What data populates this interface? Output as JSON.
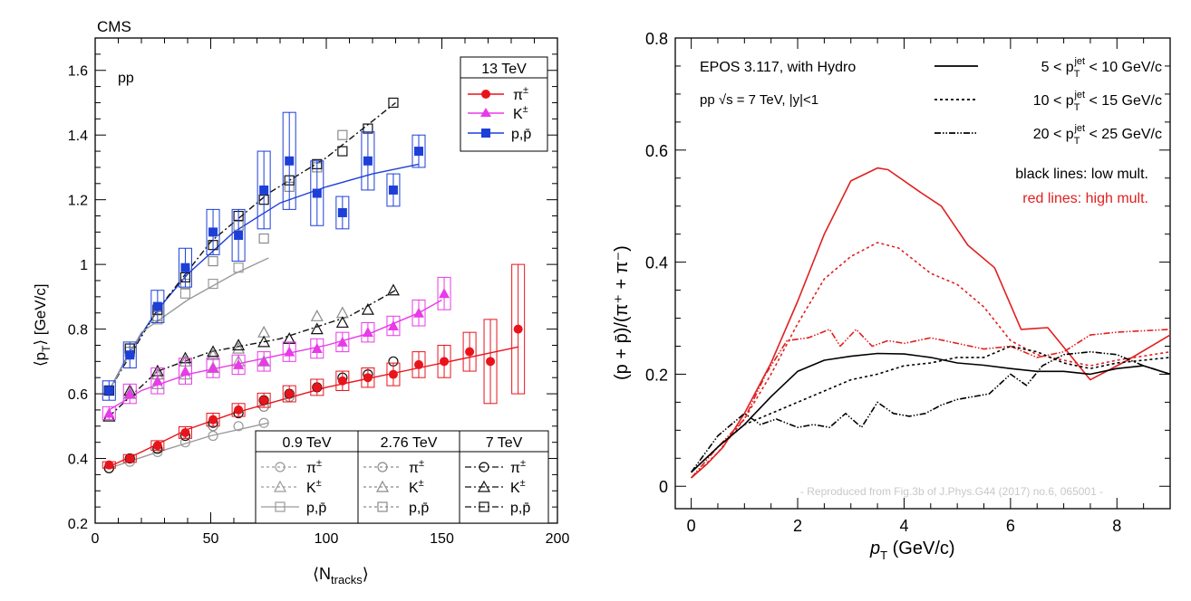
{
  "chart_data": [
    {
      "type": "scatter",
      "experiment_label": "CMS",
      "system_label": "pp",
      "xlabel": "⟨N",
      "xlabel_sub": "tracks",
      "xlabel_end": "⟩",
      "ylabel": "⟨p",
      "ylabel_sub": "T",
      "ylabel_end": "⟩ [GeV/c]",
      "xlim": [
        0,
        200
      ],
      "ylim": [
        0.2,
        1.7
      ],
      "xticks": [
        0,
        50,
        100,
        150,
        200
      ],
      "yticks": [
        0.2,
        0.4,
        0.6,
        0.8,
        1,
        1.2,
        1.4,
        1.6
      ],
      "legend_13": {
        "title": "13 TeV",
        "entries": [
          {
            "main": "π",
            "sup": "±"
          },
          {
            "main": "K",
            "sup": "±"
          },
          {
            "main": "p,p̄",
            "sup": ""
          }
        ]
      },
      "legend_bottom": [
        {
          "title": "0.9 TeV",
          "entries": [
            {
              "main": "π",
              "sup": "±"
            },
            {
              "main": "K",
              "sup": "±"
            },
            {
              "main": "p,p̄",
              "sup": ""
            }
          ]
        },
        {
          "title": "2.76 TeV",
          "entries": [
            {
              "main": "π",
              "sup": "±"
            },
            {
              "main": "K",
              "sup": "±"
            },
            {
              "main": "p,p̄",
              "sup": ""
            }
          ]
        },
        {
          "title": "7 TeV",
          "entries": [
            {
              "main": "π",
              "sup": "±"
            },
            {
              "main": "K",
              "sup": "±"
            },
            {
              "main": "p,p̄",
              "sup": ""
            }
          ]
        }
      ],
      "colors": {
        "pion13": "#e8141c",
        "kaon13": "#e83ae8",
        "proton13": "#1d3fd8",
        "tev09": "#9a9a9a",
        "tev276": "#8a8a8a",
        "tev7": "#111111"
      },
      "series": [
        {
          "name": "π± 13 TeV",
          "marker": "filled-circle",
          "color": "#e8141c",
          "x": [
            6,
            15,
            27,
            39,
            51,
            62,
            73,
            84,
            96,
            107,
            118,
            129,
            140,
            151,
            162,
            171,
            183
          ],
          "y": [
            0.38,
            0.4,
            0.44,
            0.48,
            0.52,
            0.55,
            0.58,
            0.6,
            0.62,
            0.64,
            0.65,
            0.66,
            0.69,
            0.7,
            0.73,
            0.7,
            0.8
          ],
          "sys": [
            0.01,
            0.012,
            0.015,
            0.018,
            0.02,
            0.02,
            0.022,
            0.025,
            0.025,
            0.03,
            0.03,
            0.035,
            0.04,
            0.05,
            0.06,
            0.13,
            0.2
          ]
        },
        {
          "name": "K± 13 TeV",
          "marker": "filled-triangle",
          "color": "#e83ae8",
          "x": [
            6,
            15,
            27,
            39,
            51,
            62,
            73,
            84,
            96,
            107,
            118,
            129,
            140,
            151
          ],
          "y": [
            0.54,
            0.6,
            0.64,
            0.67,
            0.68,
            0.69,
            0.7,
            0.73,
            0.74,
            0.76,
            0.79,
            0.81,
            0.85,
            0.91
          ],
          "sys": [
            0.02,
            0.03,
            0.04,
            0.04,
            0.03,
            0.03,
            0.03,
            0.03,
            0.03,
            0.03,
            0.03,
            0.03,
            0.04,
            0.05
          ]
        },
        {
          "name": "p,p̄ 13 TeV",
          "marker": "filled-square",
          "color": "#1d3fd8",
          "x": [
            6,
            15,
            27,
            39,
            51,
            62,
            73,
            84,
            96,
            107,
            118,
            129,
            140
          ],
          "y": [
            0.61,
            0.72,
            0.87,
            0.99,
            1.1,
            1.09,
            1.23,
            1.32,
            1.22,
            1.16,
            1.32,
            1.23,
            1.35
          ],
          "sys": [
            0.03,
            0.04,
            0.05,
            0.06,
            0.07,
            0.08,
            0.12,
            0.15,
            0.1,
            0.05,
            0.09,
            0.05,
            0.05
          ]
        },
        {
          "name": "π± 0.9 TeV",
          "marker": "open-circle",
          "color": "#9a9a9a",
          "x": [
            6,
            15,
            27,
            39,
            51,
            62,
            73
          ],
          "y": [
            0.37,
            0.39,
            0.42,
            0.45,
            0.47,
            0.5,
            0.51
          ]
        },
        {
          "name": "K± 0.9 TeV",
          "marker": "open-triangle",
          "color": "#9a9a9a",
          "x": [
            6,
            15,
            27,
            39,
            51,
            62,
            73
          ],
          "y": [
            0.53,
            0.6,
            0.63,
            0.66,
            0.68,
            0.7,
            0.7
          ]
        },
        {
          "name": "p,p̄ 0.9 TeV",
          "marker": "open-square",
          "color": "#9a9a9a",
          "x": [
            6,
            15,
            27,
            39,
            51,
            62
          ],
          "y": [
            0.61,
            0.73,
            0.83,
            0.91,
            0.94,
            0.99
          ]
        },
        {
          "name": "π± 2.76 TeV",
          "marker": "open-circle",
          "color": "#8a8a8a",
          "x": [
            6,
            15,
            27,
            39,
            51,
            62,
            73,
            84
          ],
          "y": [
            0.37,
            0.4,
            0.43,
            0.47,
            0.5,
            0.54,
            0.56,
            0.59
          ]
        },
        {
          "name": "K± 2.76 TeV",
          "marker": "open-triangle",
          "color": "#8a8a8a",
          "x": [
            6,
            15,
            27,
            39,
            51,
            62,
            73,
            84,
            96,
            107
          ],
          "y": [
            0.53,
            0.6,
            0.66,
            0.7,
            0.72,
            0.74,
            0.79,
            0.77,
            0.84,
            0.85
          ]
        },
        {
          "name": "p,p̄ 2.76 TeV",
          "marker": "open-square",
          "color": "#8a8a8a",
          "x": [
            6,
            15,
            27,
            39,
            51,
            62,
            73,
            84,
            96,
            107
          ],
          "y": [
            0.61,
            0.73,
            0.84,
            0.94,
            1.01,
            1.12,
            1.08,
            1.24,
            1.3,
            1.4
          ]
        },
        {
          "name": "π± 7 TeV",
          "marker": "open-circle",
          "color": "#111111",
          "x": [
            6,
            15,
            27,
            39,
            51,
            62,
            73,
            84,
            96,
            107,
            118,
            129
          ],
          "y": [
            0.37,
            0.4,
            0.43,
            0.47,
            0.51,
            0.54,
            0.58,
            0.6,
            0.62,
            0.65,
            0.66,
            0.7
          ]
        },
        {
          "name": "K± 7 TeV",
          "marker": "open-triangle",
          "color": "#111111",
          "x": [
            6,
            15,
            27,
            39,
            51,
            62,
            73,
            84,
            96,
            107,
            118,
            129
          ],
          "y": [
            0.53,
            0.61,
            0.67,
            0.71,
            0.73,
            0.75,
            0.76,
            0.77,
            0.8,
            0.82,
            0.86,
            0.92
          ]
        },
        {
          "name": "p,p̄ 7 TeV",
          "marker": "open-square",
          "color": "#111111",
          "x": [
            6,
            15,
            27,
            39,
            51,
            62,
            73,
            84,
            96,
            107,
            118,
            129
          ],
          "y": [
            0.61,
            0.74,
            0.86,
            0.96,
            1.06,
            1.15,
            1.2,
            1.26,
            1.31,
            1.35,
            1.42,
            1.5
          ]
        }
      ],
      "fits": [
        {
          "name": "pion13 fit",
          "color": "#e8141c",
          "dash": "",
          "x": [
            6,
            20,
            40,
            60,
            80,
            100,
            120,
            140,
            160,
            183
          ],
          "y": [
            0.375,
            0.42,
            0.49,
            0.54,
            0.58,
            0.62,
            0.65,
            0.68,
            0.71,
            0.745
          ]
        },
        {
          "name": "kaon13 fit",
          "color": "#e83ae8",
          "dash": "",
          "x": [
            6,
            20,
            40,
            60,
            80,
            100,
            120,
            140,
            150
          ],
          "y": [
            0.55,
            0.61,
            0.66,
            0.69,
            0.72,
            0.75,
            0.79,
            0.85,
            0.89
          ]
        },
        {
          "name": "proton13 fit",
          "color": "#1d3fd8",
          "dash": "",
          "x": [
            6,
            15,
            27,
            40,
            60,
            80,
            100,
            120,
            140
          ],
          "y": [
            0.61,
            0.73,
            0.86,
            0.97,
            1.1,
            1.19,
            1.24,
            1.28,
            1.31
          ]
        },
        {
          "name": "proton 7 fit",
          "color": "#111111",
          "dash": "7,3,2,3",
          "x": [
            6,
            27,
            50,
            75,
            100,
            130
          ],
          "y": [
            0.61,
            0.86,
            1.07,
            1.22,
            1.33,
            1.5
          ]
        },
        {
          "name": "proton 0.9 fit",
          "color": "#9a9a9a",
          "dash": "",
          "x": [
            6,
            20,
            40,
            60,
            75
          ],
          "y": [
            0.61,
            0.79,
            0.89,
            0.97,
            1.02
          ]
        },
        {
          "name": "kaon 7 fit",
          "color": "#111111",
          "dash": "7,3,2,3",
          "x": [
            6,
            27,
            50,
            80,
            110,
            130
          ],
          "y": [
            0.53,
            0.67,
            0.73,
            0.77,
            0.84,
            0.92
          ]
        },
        {
          "name": "pion 0.9 fit",
          "color": "#9a9a9a",
          "dash": "",
          "x": [
            6,
            27,
            50,
            75
          ],
          "y": [
            0.37,
            0.42,
            0.47,
            0.51
          ]
        }
      ]
    },
    {
      "type": "line",
      "xlabel": "p",
      "xlabel_sub": "T",
      "xlabel_end": " (GeV/c)",
      "ylabel": "(p + p̄)/(π⁺ + π⁻)",
      "xlim": [
        -0.3,
        9
      ],
      "ylim": [
        -0.04,
        0.8
      ],
      "xticks": [
        0,
        2,
        4,
        6,
        8
      ],
      "yticks": [
        0,
        0.2,
        0.4,
        0.6,
        0.8
      ],
      "title_line1": "EPOS 3.117, with Hydro",
      "title_line2": "pp  √s = 7 TeV, |y|<1",
      "legend": [
        {
          "label_pre": "5 < p",
          "label_sub": "T",
          "label_sup": "jet",
          "label_post": " < 10 GeV/c",
          "dash": ""
        },
        {
          "label_pre": "10 < p",
          "label_sub": "T",
          "label_sup": "jet",
          "label_post": " < 15 GeV/c",
          "dash": "3,3"
        },
        {
          "label_pre": "20 < p",
          "label_sub": "T",
          "label_sup": "jet",
          "label_post": " < 25 GeV/c",
          "dash": "7,2,1.5,2,1.5,2"
        }
      ],
      "note_black": "black lines: low mult.",
      "note_red": "red lines: high mult.",
      "watermark": "- Reproduced from Fig.3b of J.Phys.G44 (2017) no.6, 065001 -",
      "colors": {
        "low": "#000000",
        "high": "#e02020"
      },
      "series": [
        {
          "name": "high mult 5-10",
          "color": "#e02020",
          "dash": "",
          "x": [
            0,
            0.3,
            0.6,
            1.0,
            1.5,
            2.0,
            2.5,
            3.0,
            3.5,
            3.7,
            4.3,
            4.7,
            5.2,
            5.7,
            6.2,
            6.7,
            7.5,
            8.2,
            9.0
          ],
          "y": [
            0.015,
            0.04,
            0.07,
            0.13,
            0.22,
            0.33,
            0.45,
            0.545,
            0.568,
            0.565,
            0.525,
            0.5,
            0.43,
            0.39,
            0.28,
            0.283,
            0.19,
            0.225,
            0.27
          ]
        },
        {
          "name": "high mult 10-15",
          "color": "#e02020",
          "dash": "3,3",
          "x": [
            0,
            0.5,
            1.0,
            1.5,
            2.0,
            2.5,
            3.0,
            3.5,
            3.9,
            4.5,
            5.0,
            5.5,
            6.0,
            6.5,
            7.0,
            7.5,
            8.0,
            9.0
          ],
          "y": [
            0.015,
            0.06,
            0.12,
            0.2,
            0.29,
            0.37,
            0.41,
            0.435,
            0.425,
            0.38,
            0.36,
            0.32,
            0.26,
            0.235,
            0.225,
            0.215,
            0.225,
            0.24
          ]
        },
        {
          "name": "high mult 20-25",
          "color": "#e02020",
          "dash": "7,2,1.5,2,1.5,2",
          "x": [
            0,
            0.5,
            1.0,
            1.4,
            1.8,
            2.2,
            2.6,
            2.8,
            3.1,
            3.4,
            3.7,
            4.0,
            4.5,
            5.0,
            5.5,
            6.0,
            6.5,
            7.0,
            7.5,
            8.0,
            9.0
          ],
          "y": [
            0.015,
            0.07,
            0.12,
            0.2,
            0.26,
            0.265,
            0.28,
            0.25,
            0.28,
            0.25,
            0.26,
            0.255,
            0.265,
            0.255,
            0.245,
            0.25,
            0.23,
            0.24,
            0.27,
            0.275,
            0.28
          ]
        },
        {
          "name": "low mult 5-10",
          "color": "#000000",
          "dash": "",
          "x": [
            0,
            0.5,
            1.0,
            1.5,
            2.0,
            2.5,
            3.0,
            3.5,
            4.0,
            4.5,
            5.0,
            5.5,
            6.0,
            6.5,
            7.0,
            7.5,
            8.0,
            8.5,
            9.0
          ],
          "y": [
            0.025,
            0.07,
            0.11,
            0.16,
            0.205,
            0.225,
            0.232,
            0.237,
            0.236,
            0.23,
            0.22,
            0.216,
            0.21,
            0.205,
            0.205,
            0.2,
            0.21,
            0.215,
            0.2
          ]
        },
        {
          "name": "low mult 10-15",
          "color": "#000000",
          "dash": "3,3",
          "x": [
            0,
            0.5,
            1.0,
            1.5,
            2.0,
            2.5,
            3.0,
            3.5,
            4.0,
            4.5,
            5.0,
            5.5,
            6.0,
            6.5,
            7.0,
            7.5,
            8.0,
            9.0
          ],
          "y": [
            0.025,
            0.07,
            0.11,
            0.13,
            0.15,
            0.17,
            0.19,
            0.2,
            0.215,
            0.22,
            0.23,
            0.23,
            0.25,
            0.24,
            0.22,
            0.21,
            0.22,
            0.23
          ]
        },
        {
          "name": "low mult 20-25",
          "color": "#000000",
          "dash": "7,2,1.5,2,1.5,2",
          "x": [
            0,
            0.5,
            1.0,
            1.3,
            1.6,
            2.0,
            2.3,
            2.6,
            2.9,
            3.2,
            3.5,
            3.8,
            4.1,
            4.4,
            4.7,
            5.0,
            5.3,
            5.6,
            6.0,
            6.3,
            6.6,
            7.0,
            7.5,
            8.0,
            8.5,
            9.0
          ],
          "y": [
            0.025,
            0.09,
            0.13,
            0.11,
            0.12,
            0.105,
            0.11,
            0.105,
            0.13,
            0.105,
            0.15,
            0.13,
            0.125,
            0.13,
            0.145,
            0.155,
            0.16,
            0.165,
            0.2,
            0.18,
            0.215,
            0.235,
            0.24,
            0.235,
            0.215,
            0.2
          ]
        }
      ]
    }
  ]
}
